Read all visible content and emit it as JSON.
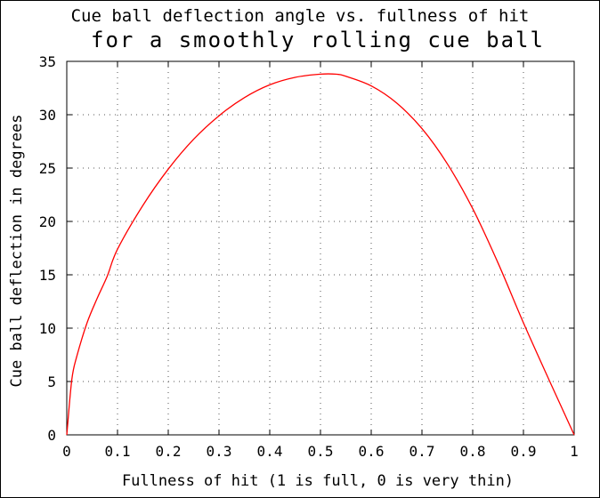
{
  "chart_data": {
    "type": "line",
    "title": "Cue ball deflection angle vs. fullness of hit",
    "subtitle": "for a smoothly rolling cue ball",
    "xlabel": "Fullness of hit (1 is full, 0 is very thin)",
    "ylabel": "Cue ball deflection in degrees",
    "xlim": [
      0,
      1
    ],
    "ylim": [
      0,
      35
    ],
    "x_ticks": [
      "0",
      "0.1",
      "0.2",
      "0.3",
      "0.4",
      "0.5",
      "0.6",
      "0.7",
      "0.8",
      "0.9",
      "1"
    ],
    "y_ticks": [
      "0",
      "5",
      "10",
      "15",
      "20",
      "25",
      "30",
      "35"
    ],
    "grid": true,
    "grid_style": "dotted",
    "line_color": "#ff0000",
    "series": [
      {
        "x": [
          0,
          0.01,
          0.02,
          0.04,
          0.06,
          0.08,
          0.1,
          0.15,
          0.2,
          0.25,
          0.3,
          0.35,
          0.4,
          0.45,
          0.5,
          0.53,
          0.55,
          0.6,
          0.65,
          0.7,
          0.75,
          0.8,
          0.85,
          0.9,
          0.95,
          1
        ],
        "values": [
          0,
          5.2,
          7.4,
          10.5,
          12.8,
          14.9,
          17.4,
          21.5,
          24.9,
          27.7,
          29.9,
          31.6,
          32.8,
          33.5,
          33.8,
          33.8,
          33.6,
          32.7,
          31.1,
          28.7,
          25.4,
          21.2,
          16.1,
          10.5,
          5.2,
          0
        ]
      }
    ]
  }
}
